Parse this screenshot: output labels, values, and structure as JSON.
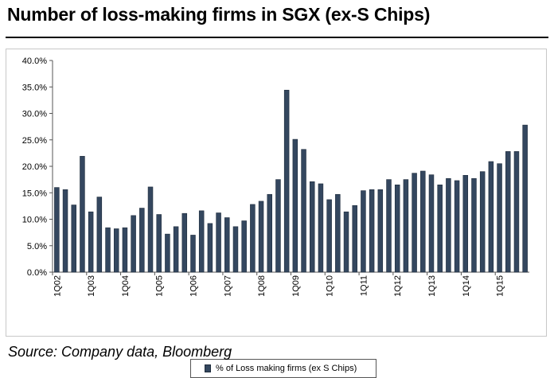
{
  "title": "Number of loss-making firms in SGX (ex-S Chips)",
  "source": "Source: Company data, Bloomberg",
  "chart_data": {
    "type": "bar",
    "bar_color": "#34475f",
    "bar_edge_color": "#1f2c3c",
    "grid": false,
    "legend_position": "bottom-center",
    "ylim": [
      0,
      40
    ],
    "y_tick_values": [
      0,
      5,
      10,
      15,
      20,
      25,
      30,
      35,
      40
    ],
    "y_tick_labels": [
      "0.0%",
      "5.0%",
      "10.0%",
      "15.0%",
      "20.0%",
      "25.0%",
      "30.0%",
      "35.0%",
      "40.0%"
    ],
    "x_tick_labels": [
      "1Q02",
      "1Q03",
      "1Q04",
      "1Q05",
      "1Q06",
      "1Q07",
      "1Q08",
      "1Q09",
      "1Q10",
      "1Q11",
      "1Q12",
      "1Q13",
      "1Q14",
      "1Q15"
    ],
    "categories": [
      "1Q02",
      "2Q02",
      "3Q02",
      "4Q02",
      "1Q03",
      "2Q03",
      "3Q03",
      "4Q03",
      "1Q04",
      "2Q04",
      "3Q04",
      "4Q04",
      "1Q05",
      "2Q05",
      "3Q05",
      "4Q05",
      "1Q06",
      "2Q06",
      "3Q06",
      "4Q06",
      "1Q07",
      "2Q07",
      "3Q07",
      "4Q07",
      "1Q08",
      "2Q08",
      "3Q08",
      "4Q08",
      "1Q09",
      "2Q09",
      "3Q09",
      "4Q09",
      "1Q10",
      "2Q10",
      "3Q10",
      "4Q10",
      "1Q11",
      "2Q11",
      "3Q11",
      "4Q11",
      "1Q12",
      "2Q12",
      "3Q12",
      "4Q12",
      "1Q13",
      "2Q13",
      "3Q13",
      "4Q13",
      "1Q14",
      "2Q14",
      "3Q14",
      "4Q14",
      "1Q15",
      "2Q15",
      "3Q15",
      "4Q15"
    ],
    "series": [
      {
        "name": "% of Loss making firms (ex S Chips)",
        "values": [
          16.0,
          15.6,
          12.7,
          21.9,
          11.4,
          14.2,
          8.4,
          8.2,
          8.4,
          10.7,
          12.1,
          16.1,
          10.9,
          7.2,
          8.6,
          11.1,
          7.0,
          11.6,
          9.2,
          11.2,
          10.3,
          8.6,
          9.7,
          12.8,
          13.4,
          14.7,
          17.5,
          34.4,
          25.1,
          23.2,
          17.1,
          16.7,
          13.7,
          14.7,
          11.4,
          12.6,
          15.4,
          15.6,
          15.6,
          17.5,
          16.5,
          17.5,
          18.7,
          19.1,
          18.4,
          16.5,
          17.7,
          17.3,
          18.3,
          17.7,
          19.0,
          20.9,
          20.5,
          22.8,
          22.8,
          27.8
        ]
      }
    ]
  }
}
